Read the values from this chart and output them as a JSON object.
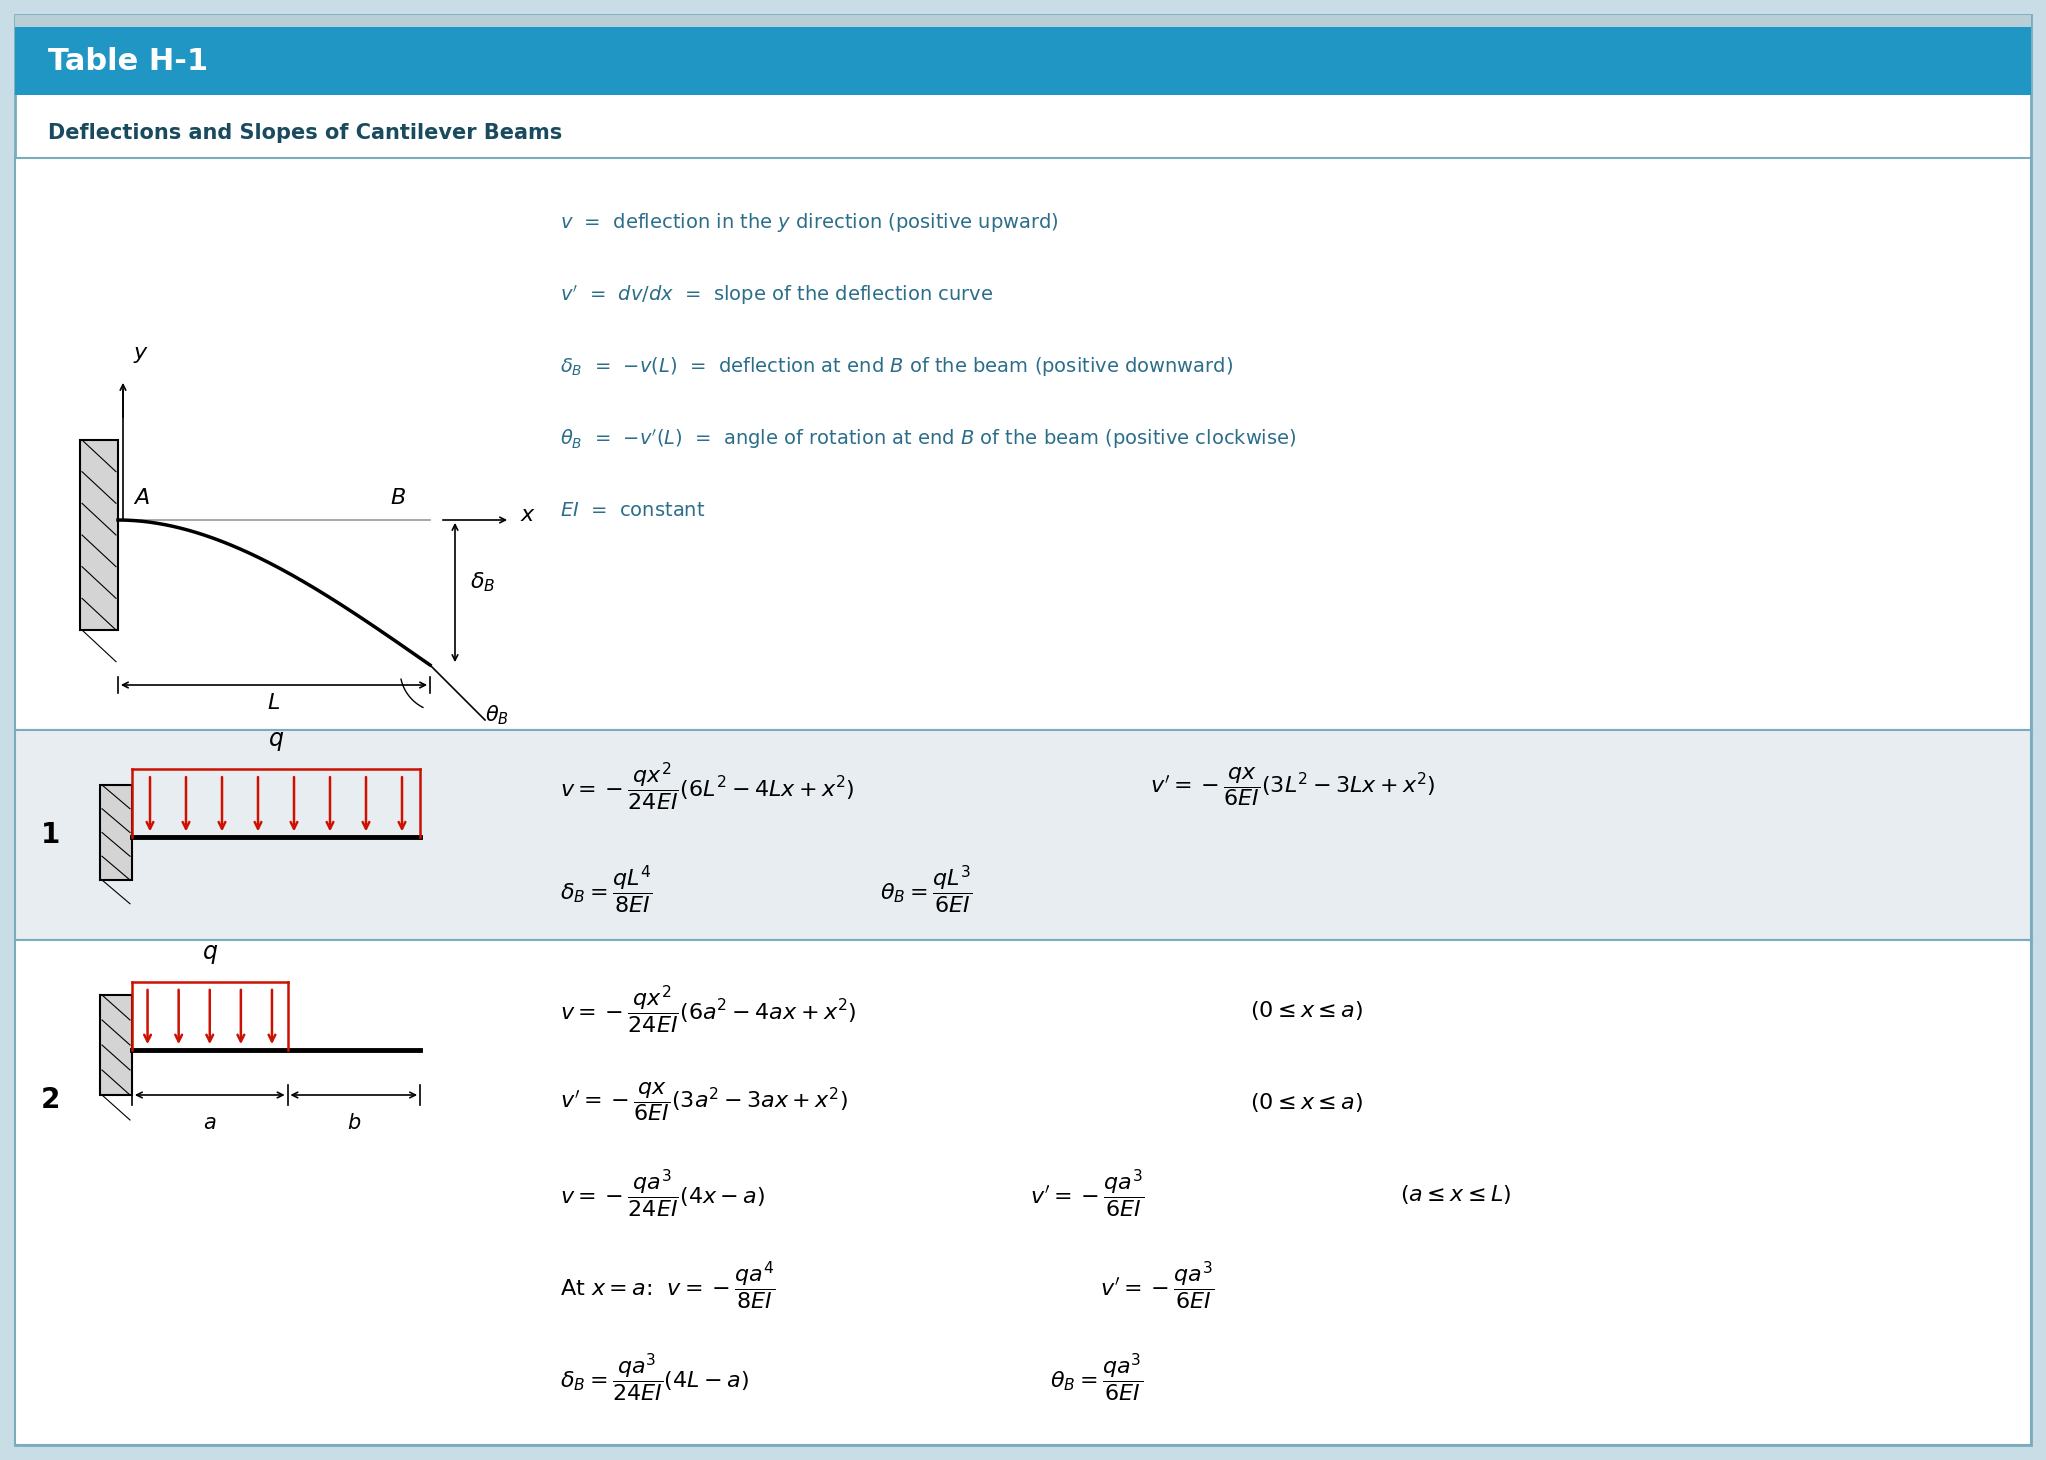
{
  "title": "Table H-1",
  "subtitle": "Deflections and Slopes of Cantilever Beams",
  "header_bg": "#2096C4",
  "header_text_color": "#ffffff",
  "subtitle_text_color": "#1a4a5e",
  "row0_bg": "#ffffff",
  "row1_bg": "#e8edf1",
  "row2_bg": "#ffffff",
  "border_color": "#7aacbe",
  "outer_bg": "#c8dde6",
  "red_color": "#cc1100",
  "blue_text": "#2c6e8a",
  "def_line1": "$v$  =  deflection in the $y$ direction (positive upward)",
  "def_line2": "$v'$  =  $dv/dx$  =  slope of the deflection curve",
  "def_line3": "$\\delta_B$  =  $-v(L)$  =  deflection at end $B$ of the beam (positive downward)",
  "def_line4": "$\\theta_B$  =  $-v'(L)$  =  angle of rotation at end $B$ of the beam (positive clockwise)",
  "def_line5": "$EI$  =  constant"
}
